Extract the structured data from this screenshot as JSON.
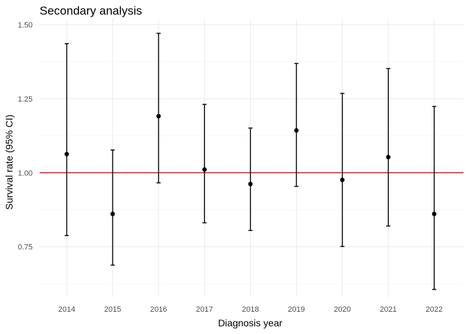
{
  "chart_data": {
    "type": "scatter",
    "subtype": "point-range with error bars",
    "title": "Secondary analysis",
    "xlabel": "Diagnosis year",
    "ylabel": "Survival rate (95% CI)",
    "categories": [
      "2014",
      "2015",
      "2016",
      "2017",
      "2018",
      "2019",
      "2020",
      "2021",
      "2022"
    ],
    "values": [
      1.063,
      0.861,
      1.191,
      1.011,
      0.962,
      1.143,
      0.976,
      1.053,
      0.861
    ],
    "lower": [
      0.788,
      0.688,
      0.966,
      0.831,
      0.805,
      0.954,
      0.751,
      0.82,
      0.606
    ],
    "upper": [
      1.436,
      1.077,
      1.471,
      1.231,
      1.151,
      1.369,
      1.268,
      1.352,
      1.224
    ],
    "ylim": [
      0.58,
      1.52
    ],
    "yticks": [
      0.75,
      1.0,
      1.25,
      1.5
    ],
    "ytick_labels": [
      "0.75",
      "1.00",
      "1.25",
      "1.50"
    ],
    "reference_line": {
      "y": 1.0,
      "color": "#e31a1c"
    },
    "point_color": "#000000",
    "grid": true,
    "legend": "none"
  }
}
